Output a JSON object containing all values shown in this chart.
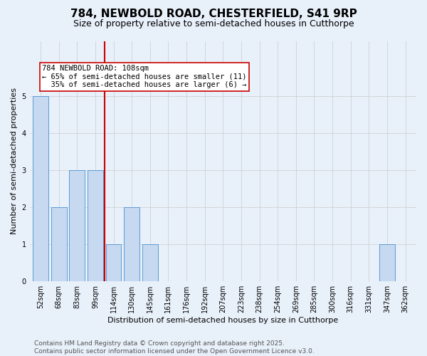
{
  "title1": "784, NEWBOLD ROAD, CHESTERFIELD, S41 9RP",
  "title2": "Size of property relative to semi-detached houses in Cutthorpe",
  "xlabel": "Distribution of semi-detached houses by size in Cutthorpe",
  "ylabel": "Number of semi-detached properties",
  "categories": [
    "52sqm",
    "68sqm",
    "83sqm",
    "99sqm",
    "114sqm",
    "130sqm",
    "145sqm",
    "161sqm",
    "176sqm",
    "192sqm",
    "207sqm",
    "223sqm",
    "238sqm",
    "254sqm",
    "269sqm",
    "285sqm",
    "300sqm",
    "316sqm",
    "331sqm",
    "347sqm",
    "362sqm"
  ],
  "values": [
    5,
    2,
    3,
    3,
    1,
    2,
    1,
    0,
    0,
    0,
    0,
    0,
    0,
    0,
    0,
    0,
    0,
    0,
    0,
    1,
    0
  ],
  "bar_color": "#c6d9f0",
  "bar_edge_color": "#5b9bd5",
  "vline_color": "#cc0000",
  "vline_x": 3.5,
  "annotation_text": "784 NEWBOLD ROAD: 108sqm\n← 65% of semi-detached houses are smaller (11)\n  35% of semi-detached houses are larger (6) →",
  "annotation_box_color": "#ffffff",
  "annotation_box_edge": "#cc0000",
  "ylim": [
    0,
    6.5
  ],
  "yticks": [
    0,
    1,
    2,
    3,
    4,
    5
  ],
  "background_color": "#e8f0fa",
  "footer_text": "Contains HM Land Registry data © Crown copyright and database right 2025.\nContains public sector information licensed under the Open Government Licence v3.0.",
  "title1_fontsize": 11,
  "title2_fontsize": 9,
  "annotation_fontsize": 7.5,
  "footer_fontsize": 6.5,
  "ylabel_fontsize": 8,
  "xlabel_fontsize": 8,
  "tick_fontsize": 7
}
